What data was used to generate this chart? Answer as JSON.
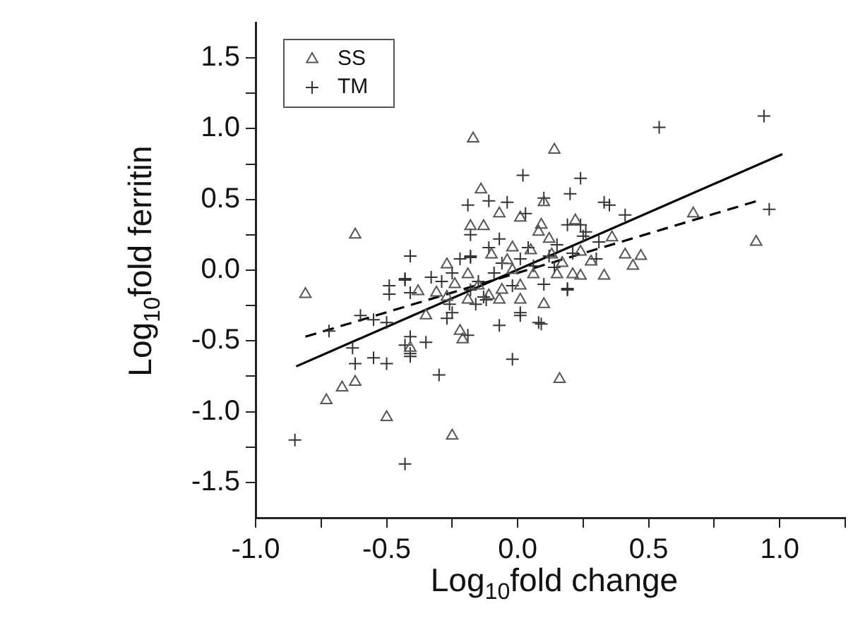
{
  "chart_data": {
    "type": "scatter",
    "xlabel": "Log$_{10}$fold change",
    "ylabel": "Log$_{10}$fold ferritin",
    "xlim": [
      -1,
      1.25
    ],
    "xticks": [
      {
        "value": -1,
        "label": "-1.0"
      },
      {
        "value": -0.75,
        "label": null
      },
      {
        "value": -0.5,
        "label": "-0.5"
      },
      {
        "value": -0.25,
        "label": null
      },
      {
        "value": 0,
        "label": "0.0"
      },
      {
        "value": 0.25,
        "label": null
      },
      {
        "value": 0.5,
        "label": "0.5"
      },
      {
        "value": 0.75,
        "label": null
      },
      {
        "value": 1,
        "label": "1.0"
      },
      {
        "value": 1.25,
        "label": null
      }
    ],
    "ylim": [
      -1.75,
      1.75
    ],
    "yticks": [
      {
        "value": -1.5,
        "label": "-1.5"
      },
      {
        "value": -1.25,
        "label": null
      },
      {
        "value": -1,
        "label": "-1.0"
      },
      {
        "value": -0.75,
        "label": null
      },
      {
        "value": -0.5,
        "label": "-0.5"
      },
      {
        "value": -0.25,
        "label": null
      },
      {
        "value": 0,
        "label": "0.0"
      },
      {
        "value": 0.25,
        "label": null
      },
      {
        "value": 0.5,
        "label": "0.5"
      },
      {
        "value": 0.75,
        "label": null
      },
      {
        "value": 1,
        "label": "1.0"
      },
      {
        "value": 1.25,
        "label": null
      },
      {
        "value": 1.5,
        "label": "1.5"
      }
    ],
    "grid": false,
    "legend": "top left",
    "series": [
      {
        "name": "SS",
        "type": "scatter",
        "marker": "triangle",
        "color": "#555555",
        "x": [
          -0.81,
          -0.62,
          -0.17,
          0.14,
          -0.14,
          0.1,
          -0.07,
          -0.18,
          -0.13,
          0.22,
          0.67,
          0.91,
          0.36,
          0.47,
          0.44,
          0.41,
          0.33,
          0.24,
          -0.27,
          -0.38,
          0.1,
          -0.35,
          0.01,
          0.09,
          0.01,
          -0.07,
          -0.22,
          -0.21,
          -0.41,
          -0.62,
          -0.67,
          -0.73,
          -0.5,
          -0.25,
          0.16,
          -0.1,
          -0.04,
          -0.02,
          0.05,
          0.12,
          0.08,
          0.17,
          0.21,
          0.06,
          0.01,
          -0.06,
          -0.15,
          -0.19,
          -0.24,
          -0.19,
          -0.11,
          0.28,
          0.24,
          -0.27,
          -0.31,
          0.15,
          -0.02,
          0.13
        ],
        "values": [
          -0.17,
          0.25,
          0.93,
          0.85,
          0.57,
          0.48,
          0.4,
          0.31,
          0.31,
          0.35,
          0.4,
          0.2,
          0.23,
          0.1,
          0.03,
          0.11,
          -0.04,
          -0.04,
          0.04,
          -0.15,
          -0.24,
          -0.32,
          0.37,
          0.32,
          -0.21,
          -0.21,
          -0.43,
          -0.49,
          -0.55,
          -0.79,
          -0.83,
          -0.92,
          -1.04,
          -1.17,
          -0.77,
          0.11,
          0.07,
          0.16,
          0.14,
          0.22,
          0.27,
          0.05,
          -0.03,
          -0.03,
          -0.11,
          -0.14,
          -0.11,
          -0.03,
          -0.1,
          -0.21,
          -0.18,
          0.06,
          0.13,
          -0.19,
          -0.16,
          -0.03,
          0.0,
          0.11
        ]
      },
      {
        "name": "TM",
        "type": "scatter",
        "marker": "cross",
        "color": "#333333",
        "x": [
          -0.41,
          0.54,
          0.94,
          0.96,
          0.02,
          0.24,
          0.2,
          0.1,
          -0.19,
          -0.11,
          -0.04,
          0.33,
          0.35,
          0.41,
          -0.18,
          -0.18,
          -0.43,
          -0.49,
          -0.49,
          0.19,
          0.03,
          -0.07,
          0.26,
          -0.6,
          -0.55,
          -0.5,
          -0.72,
          -0.63,
          -0.62,
          -0.55,
          -0.5,
          -0.43,
          -0.41,
          -0.35,
          -0.19,
          -0.07,
          0.09,
          0.01,
          -0.02,
          -0.3,
          -0.85,
          -0.43,
          -0.41,
          -0.27,
          -0.16,
          -0.13,
          -0.41,
          0.19,
          -0.33,
          -0.18,
          0.19,
          0.24,
          0.31,
          -0.22,
          0.01,
          0.06,
          0.14,
          0.21,
          0.1,
          -0.09,
          -0.15,
          -0.25,
          -0.29,
          -0.25,
          -0.26,
          0.01,
          0.08,
          -0.06,
          -0.02,
          0.04,
          0.12,
          -0.11,
          0.15,
          0.25,
          0.3,
          -0.18,
          -0.12,
          -0.41,
          -0.43
        ],
        "values": [
          0.1,
          1.01,
          1.09,
          0.43,
          0.67,
          0.65,
          0.54,
          0.51,
          0.46,
          0.49,
          0.48,
          0.48,
          0.46,
          0.39,
          0.25,
          0.09,
          -0.07,
          -0.11,
          -0.17,
          -0.13,
          0.4,
          0.22,
          0.27,
          -0.32,
          -0.35,
          -0.37,
          -0.43,
          -0.55,
          -0.66,
          -0.62,
          -0.66,
          -0.53,
          -0.61,
          -0.51,
          -0.46,
          -0.39,
          -0.38,
          -0.32,
          -0.63,
          -0.74,
          -1.2,
          -1.37,
          -0.47,
          -0.34,
          -0.24,
          -0.19,
          -0.16,
          -0.14,
          -0.05,
          0.1,
          0.32,
          0.32,
          0.2,
          0.08,
          0.08,
          0.03,
          0.02,
          0.12,
          -0.1,
          -0.02,
          -0.08,
          -0.02,
          -0.08,
          -0.3,
          -0.24,
          -0.3,
          -0.37,
          0.05,
          -0.11,
          0.16,
          0.1,
          0.16,
          0.18,
          0.24,
          0.08,
          -0.14,
          -0.21,
          -0.59,
          -0.06
        ]
      },
      {
        "type": "line",
        "marker": "none",
        "line_style": "solid",
        "color": "#000000",
        "x": [
          -0.845,
          1.01
        ],
        "values": [
          -0.68,
          0.82
        ]
      },
      {
        "type": "line",
        "marker": "none",
        "line_style": "dashed",
        "color": "#000000",
        "x": [
          -0.81,
          0.915
        ],
        "values": [
          -0.47,
          0.49
        ]
      }
    ]
  }
}
